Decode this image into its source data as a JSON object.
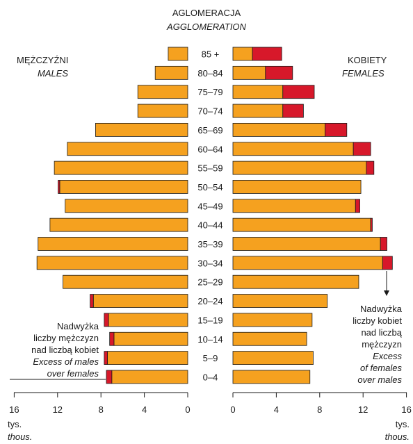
{
  "chart_data": {
    "type": "bar",
    "title": "AGLOMERACJA",
    "subtitle": "AGGLOMERATION",
    "left_label": "MĘŻCZYŹNI",
    "left_label_en": "MALES",
    "right_label": "KOBIETY",
    "right_label_en": "FEMALES",
    "unit": "tys.",
    "unit_en": "thous.",
    "xlim": [
      0,
      16
    ],
    "x_ticks": [
      "16",
      "12",
      "8",
      "4",
      "0"
    ],
    "x_ticks_right": [
      "0",
      "4",
      "8",
      "12",
      "16"
    ],
    "categories": [
      "85 +",
      "80–84",
      "75–79",
      "70–74",
      "65–69",
      "60–64",
      "55–59",
      "50–54",
      "45–49",
      "40–44",
      "35–39",
      "30–34",
      "25–29",
      "20–24",
      "15–19",
      "10–14",
      "5–9",
      "0–4"
    ],
    "males": [
      1.8,
      3.0,
      4.6,
      4.6,
      8.5,
      11.1,
      12.3,
      11.8,
      11.3,
      12.7,
      13.8,
      13.9,
      11.5,
      8.7,
      7.3,
      6.8,
      7.4,
      7.0
    ],
    "females": [
      1.8,
      3.0,
      4.6,
      4.6,
      8.5,
      11.1,
      12.3,
      11.8,
      11.3,
      12.7,
      13.6,
      13.8,
      11.6,
      8.7,
      7.3,
      6.8,
      7.4,
      7.1
    ],
    "excess_males": [
      0,
      0,
      0,
      0,
      0,
      0,
      0,
      0.15,
      0,
      0,
      0,
      0,
      0,
      0.3,
      0.4,
      0.4,
      0.3,
      0.5
    ],
    "excess_females": [
      2.7,
      2.5,
      2.9,
      1.9,
      2.0,
      1.6,
      0.7,
      0,
      0.4,
      0.15,
      0.6,
      0.9,
      0,
      0,
      0,
      0,
      0,
      0
    ],
    "colors": {
      "base": "#f5a11f",
      "excess": "#d7182a",
      "outline": "#1a1a1a"
    }
  },
  "annotations": {
    "males_excess": [
      "Nadwyżka",
      "liczby mężczyzn",
      "nad liczbą kobiet",
      "Excess of males",
      "over females"
    ],
    "females_excess": [
      "Nadwyżka",
      "liczby kobiet",
      "nad liczbą",
      "mężczyzn",
      "Excess",
      "of females",
      "over males"
    ]
  }
}
